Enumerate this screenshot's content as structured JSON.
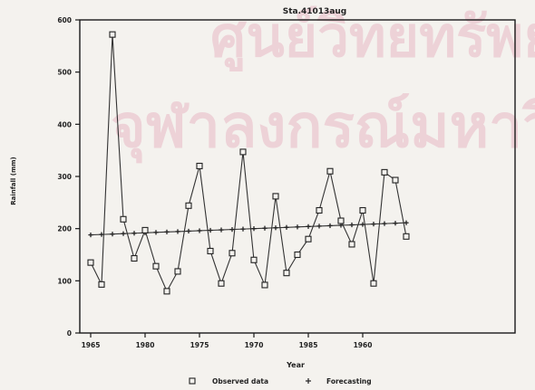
{
  "chart_data": {
    "type": "line",
    "title": "Sta.41013aug",
    "xlabel": "Year",
    "ylabel": "Rainfall  (mm)",
    "xlim": [
      1964,
      2004
    ],
    "ylim": [
      0,
      600
    ],
    "x_tick_labels": [
      "1965",
      "1980",
      "1975",
      "1970",
      "1985",
      "1960"
    ],
    "yticks": [
      0,
      100,
      200,
      300,
      400,
      500,
      600
    ],
    "grid": false,
    "legend_position": "bottom",
    "series": [
      {
        "name": "Observed data",
        "marker": "square",
        "x": [
          1965,
          1966,
          1967,
          1968,
          1969,
          1970,
          1971,
          1972,
          1973,
          1974,
          1975,
          1976,
          1977,
          1978,
          1979,
          1980,
          1981,
          1982,
          1983,
          1984,
          1985,
          1986,
          1987,
          1988,
          1989,
          1990,
          1991,
          1992,
          1993,
          1994
        ],
        "values": [
          135,
          93,
          572,
          218,
          143,
          197,
          128,
          80,
          118,
          244,
          320,
          157,
          95,
          153,
          347,
          140,
          92,
          262,
          115,
          150,
          180,
          235,
          310,
          215,
          170,
          235,
          95,
          308,
          293,
          185
        ]
      },
      {
        "name": "Forecasting",
        "marker": "plus",
        "x": [
          1965,
          1966,
          1967,
          1968,
          1969,
          1970,
          1971,
          1972,
          1973,
          1974,
          1975,
          1976,
          1977,
          1978,
          1979,
          1980,
          1981,
          1982,
          1983,
          1984,
          1985,
          1986,
          1987,
          1988,
          1989,
          1990,
          1991,
          1992,
          1993,
          1994
        ],
        "values": [
          188,
          188.8,
          189.6,
          190.4,
          191.2,
          192,
          192.8,
          193.6,
          194.4,
          195.2,
          196,
          196.8,
          197.6,
          198.4,
          199.2,
          200,
          200.8,
          201.6,
          202.4,
          203.2,
          204,
          204.8,
          205.6,
          206.4,
          207.2,
          208,
          208.8,
          209.6,
          210.4,
          211.2
        ]
      }
    ]
  },
  "colors": {
    "line": "#333333",
    "axis": "#1a1a1a",
    "watermark": "#e9b9c6"
  },
  "watermark": {
    "line1": "ศูนย์วิทยทรัพยากร",
    "line2": "จุฬาลงกรณ์มหาวิทยาลัย"
  }
}
